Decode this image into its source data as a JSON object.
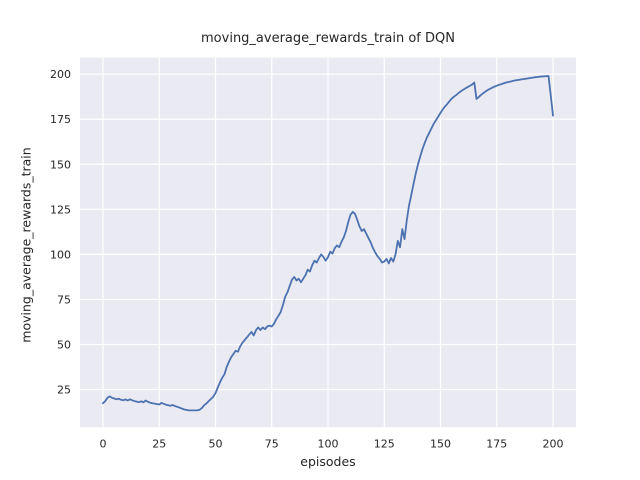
{
  "figure": {
    "background_color": "#ffffff",
    "axes_background_color": "#eaeaf2",
    "grid_color": "#ffffff",
    "line_color": "#4c72b0",
    "text_color": "#262626"
  },
  "chart_data": {
    "type": "line",
    "title": "moving_average_rewards_train of DQN",
    "xlabel": "episodes",
    "ylabel": "moving_average_rewards_train",
    "x_ticks": [
      0,
      25,
      50,
      75,
      100,
      125,
      150,
      175,
      200
    ],
    "y_ticks": [
      25,
      50,
      75,
      100,
      125,
      150,
      175,
      200
    ],
    "xlim": [
      -10.2,
      210.2
    ],
    "ylim": [
      4.1,
      209.2
    ],
    "grid": true,
    "legend": false,
    "series": [
      {
        "name": "moving_average_rewards_train",
        "x_start": 0,
        "x_step": 1,
        "values": [
          17.4,
          18.6,
          20.4,
          21.2,
          20.4,
          20.0,
          19.6,
          19.9,
          19.3,
          19.0,
          19.5,
          18.9,
          19.6,
          19.0,
          18.6,
          18.3,
          18.0,
          18.5,
          17.9,
          18.9,
          18.2,
          17.7,
          17.4,
          17.2,
          16.9,
          16.7,
          17.6,
          17.1,
          16.6,
          16.3,
          16.0,
          16.4,
          15.8,
          15.4,
          15.0,
          14.5,
          14.0,
          13.7,
          13.5,
          13.4,
          13.4,
          13.4,
          13.5,
          13.8,
          14.8,
          16.3,
          17.3,
          18.6,
          19.8,
          21.0,
          23.0,
          26.0,
          29.0,
          31.5,
          33.5,
          37.5,
          40.5,
          43.0,
          44.8,
          46.5,
          46.0,
          49.0,
          51.0,
          52.5,
          54.0,
          55.5,
          57.0,
          55.0,
          58.0,
          59.5,
          58.0,
          59.5,
          58.5,
          60.0,
          60.5,
          60.0,
          61.5,
          64.0,
          66.0,
          68.0,
          72.0,
          76.5,
          79.0,
          82.5,
          86.0,
          87.5,
          85.5,
          86.5,
          84.5,
          86.5,
          88.5,
          91.5,
          90.5,
          94.0,
          96.5,
          95.5,
          98.0,
          100.0,
          98.5,
          96.5,
          98.5,
          101.5,
          100.5,
          103.5,
          105.0,
          104.0,
          107.0,
          109.5,
          113.0,
          118.0,
          122.0,
          123.5,
          122.5,
          119.0,
          115.5,
          113.0,
          114.0,
          111.5,
          109.0,
          106.5,
          103.5,
          101.0,
          99.0,
          97.5,
          95.5,
          96.0,
          97.5,
          95.0,
          98.0,
          96.0,
          100.0,
          107.5,
          104.0,
          114.0,
          108.5,
          119.0,
          127.0,
          133.0,
          139.0,
          145.0,
          150.0,
          154.5,
          158.5,
          162.0,
          165.0,
          167.5,
          170.0,
          172.5,
          174.5,
          176.5,
          178.5,
          180.5,
          182.0,
          183.5,
          185.0,
          186.5,
          187.5,
          188.5,
          189.5,
          190.5,
          191.3,
          192.1,
          192.8,
          193.5,
          194.2,
          195.4,
          186.2,
          187.4,
          188.5,
          189.5,
          190.4,
          191.2,
          191.9,
          192.5,
          193.1,
          193.6,
          194.1,
          194.5,
          194.9,
          195.3,
          195.6,
          195.9,
          196.2,
          196.5,
          196.7,
          196.9,
          197.1,
          197.3,
          197.5,
          197.7,
          197.9,
          198.1,
          198.3,
          198.4,
          198.6,
          198.7,
          198.8,
          198.9,
          199.0,
          188.0,
          177.0
        ]
      }
    ]
  }
}
